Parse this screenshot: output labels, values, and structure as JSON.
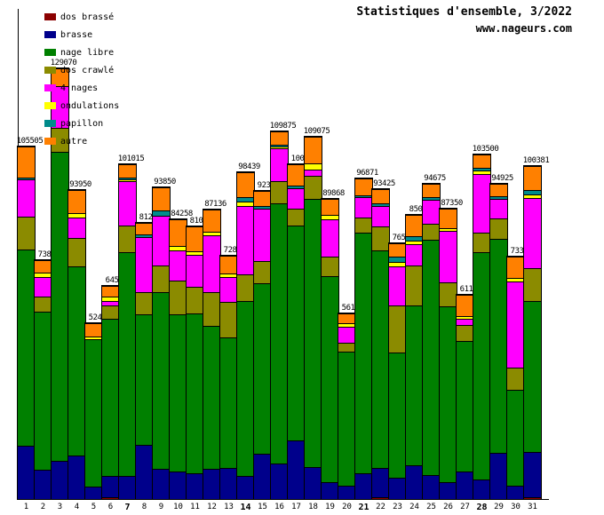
{
  "title": "Statistiques d'ensemble, 3/2022",
  "subtitle": "www.nageurs.com",
  "chart_data": {
    "type": "bar",
    "stacked": true,
    "title": "Statistiques d'ensemble, 3/2022",
    "xlabel": "",
    "ylabel": "",
    "y_ticks_visible": false,
    "grid": false,
    "legend_position": "top-left",
    "ylim": [
      0,
      130000
    ],
    "categories": [
      "1",
      "2",
      "3",
      "4",
      "5",
      "6",
      "7",
      "8",
      "9",
      "10",
      "11",
      "12",
      "13",
      "14",
      "15",
      "16",
      "17",
      "18",
      "19",
      "20",
      "21",
      "22",
      "23",
      "24",
      "25",
      "26",
      "27",
      "28",
      "29",
      "30",
      "31"
    ],
    "bold_categories": [
      "7",
      "14",
      "21",
      "28"
    ],
    "bar_labels": [
      "105505",
      "7385",
      "129070",
      "93950",
      "5245",
      "6455",
      "101015",
      "8125",
      "93850",
      "84258",
      "8107",
      "87136",
      "7280",
      "98439",
      "9233",
      "109875",
      "1001",
      "109075",
      "89868",
      "5610",
      "96871",
      "93425",
      "7657",
      "8502",
      "94675",
      "87350",
      "6110",
      "103500",
      "94925",
      "7337",
      "100381"
    ],
    "series": [
      {
        "key": "dos_brasse",
        "label": "dos brassé",
        "color": "#8b0000",
        "values": [
          0,
          0,
          0,
          0,
          0,
          532,
          0,
          0,
          0,
          0,
          0,
          0,
          0,
          0,
          0,
          0,
          0,
          0,
          0,
          0,
          0,
          532,
          0,
          0,
          0,
          0,
          0,
          0,
          0,
          0,
          532
        ]
      },
      {
        "key": "brasse",
        "label": "brasse",
        "color": "#00008b",
        "values": [
          15960,
          8778,
          11438,
          13034,
          3724,
          6384,
          6916,
          16226,
          9044,
          8246,
          7714,
          9044,
          9310,
          6916,
          13566,
          10640,
          17556,
          9576,
          5054,
          3990,
          7714,
          8778,
          6384,
          10108,
          7182,
          5054,
          8246,
          5852,
          13832,
          3990,
          13566
        ]
      },
      {
        "key": "nage_libre",
        "label": "nage libre",
        "color": "#008000",
        "values": [
          58786,
          47348,
          92568,
          56658,
          44156,
          47082,
          67032,
          39102,
          52934,
          47082,
          47880,
          42826,
          39102,
          52402,
          51072,
          77938,
          64372,
          80332,
          61712,
          40166,
          72086,
          65170,
          37506,
          47880,
          70490,
          52668,
          39102,
          68096,
          64106,
          28728,
          45220
        ]
      },
      {
        "key": "dos_crawle",
        "label": "dos crawlé",
        "color": "#8b8b00",
        "values": [
          9842,
          4522,
          7182,
          8512,
          0,
          3990,
          7980,
          6650,
          7980,
          10108,
          7980,
          10108,
          10640,
          7980,
          6650,
          6650,
          5054,
          6916,
          5852,
          2660,
          4522,
          7182,
          14098,
          11970,
          4788,
          7182,
          4788,
          5852,
          6118,
          6650,
          9842
        ]
      },
      {
        "key": "quatre_nages",
        "label": "4 nages",
        "color": "#ff00ff",
        "values": [
          11172,
          5852,
          12502,
          6118,
          0,
          1330,
          13300,
          16492,
          14896,
          9044,
          9576,
          17024,
          7448,
          20482,
          15694,
          9842,
          6118,
          1862,
          11172,
          4788,
          6118,
          6118,
          11704,
          6384,
          7182,
          15428,
          1862,
          17556,
          5852,
          25802,
          21014
        ]
      },
      {
        "key": "ondulations",
        "label": "ondulations",
        "color": "#ffff00",
        "values": [
          0,
          1330,
          0,
          1330,
          798,
          1330,
          532,
          0,
          0,
          1330,
          1064,
          1064,
          1064,
          1330,
          0,
          532,
          0,
          1862,
          1330,
          1064,
          0,
          0,
          1330,
          1064,
          0,
          798,
          798,
          1064,
          0,
          1064,
          1064
        ]
      },
      {
        "key": "papillon",
        "label": "papillon",
        "color": "#008b8b",
        "values": [
          532,
          0,
          0,
          0,
          0,
          0,
          532,
          798,
          1596,
          0,
          0,
          0,
          0,
          1330,
          798,
          532,
          798,
          0,
          0,
          0,
          532,
          798,
          1596,
          1330,
          798,
          0,
          0,
          798,
          798,
          0,
          1330
        ]
      },
      {
        "key": "autre",
        "label": "autre",
        "color": "#ff8000",
        "values": [
          9310,
          3724,
          5320,
          6916,
          3990,
          3192,
          3990,
          3458,
          6916,
          7980,
          7448,
          6650,
          5320,
          7448,
          4522,
          3990,
          6384,
          7980,
          4788,
          2926,
          5054,
          4256,
          3990,
          6384,
          3990,
          5852,
          6384,
          3990,
          3724,
          6384,
          7182
        ]
      }
    ]
  }
}
